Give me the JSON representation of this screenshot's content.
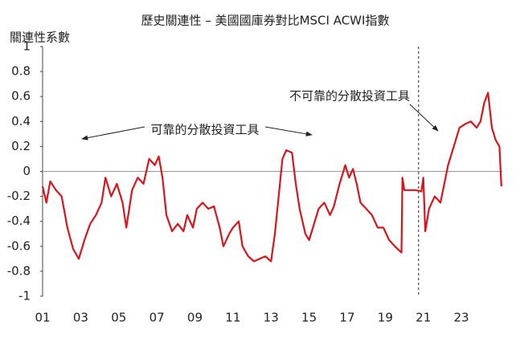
{
  "chart_data": {
    "type": "line",
    "title": "歷史關連性 – 美國國庫券對比MSCI ACWI指數",
    "y_label": "關連性系數",
    "annotations": [
      "可靠的分散投資工具",
      "不可靠的分散投資工具"
    ],
    "vline": 2020.75,
    "xlim": [
      2001,
      2025.15
    ],
    "xticks": [
      {
        "value": 2001,
        "label": "01"
      },
      {
        "value": 2003,
        "label": "03"
      },
      {
        "value": 2005,
        "label": "05"
      },
      {
        "value": 2007,
        "label": "07"
      },
      {
        "value": 2009,
        "label": "09"
      },
      {
        "value": 2011,
        "label": "11"
      },
      {
        "value": 2013,
        "label": "13"
      },
      {
        "value": 2015,
        "label": "15"
      },
      {
        "value": 2017,
        "label": "17"
      },
      {
        "value": 2019,
        "label": "19"
      },
      {
        "value": 2021,
        "label": "21"
      },
      {
        "value": 2023,
        "label": "23"
      }
    ],
    "ylim": [
      -1,
      1
    ],
    "yticks": [
      1,
      0.8,
      0.6,
      0.4,
      0.2,
      0,
      -0.2,
      -0.4,
      -0.6,
      -0.8,
      -1
    ],
    "x": [
      2001.0,
      2001.2,
      2001.4,
      2001.7,
      2002.0,
      2002.3,
      2002.6,
      2002.9,
      2003.2,
      2003.5,
      2003.8,
      2004.1,
      2004.3,
      2004.6,
      2004.9,
      2005.2,
      2005.4,
      2005.7,
      2006.0,
      2006.3,
      2006.6,
      2006.9,
      2007.1,
      2007.3,
      2007.5,
      2007.8,
      2008.1,
      2008.4,
      2008.6,
      2008.9,
      2009.1,
      2009.4,
      2009.7,
      2010.0,
      2010.3,
      2010.5,
      2010.8,
      2011.0,
      2011.3,
      2011.5,
      2011.8,
      2012.1,
      2012.4,
      2012.7,
      2013.0,
      2013.2,
      2013.4,
      2013.6,
      2013.8,
      2014.1,
      2014.3,
      2014.5,
      2014.8,
      2015.0,
      2015.3,
      2015.5,
      2015.8,
      2016.1,
      2016.3,
      2016.6,
      2016.9,
      2017.1,
      2017.3,
      2017.5,
      2017.7,
      2018.0,
      2018.3,
      2018.6,
      2018.9,
      2019.2,
      2019.5,
      2019.85,
      2019.9,
      2020.0,
      2020.2,
      2020.6,
      2020.9,
      2021.0,
      2021.1,
      2021.3,
      2021.6,
      2021.9,
      2022.1,
      2022.3,
      2022.6,
      2022.9,
      2023.2,
      2023.5,
      2023.8,
      2024.0,
      2024.2,
      2024.4,
      2024.6,
      2024.8,
      2025.0,
      2025.1
    ],
    "series": [
      {
        "color": "#d7161e",
        "values": [
          -0.12,
          -0.25,
          -0.08,
          -0.15,
          -0.2,
          -0.45,
          -0.62,
          -0.7,
          -0.55,
          -0.42,
          -0.35,
          -0.25,
          -0.05,
          -0.2,
          -0.1,
          -0.25,
          -0.45,
          -0.15,
          -0.05,
          -0.1,
          0.1,
          0.05,
          0.12,
          -0.05,
          -0.35,
          -0.48,
          -0.42,
          -0.48,
          -0.35,
          -0.45,
          -0.3,
          -0.25,
          -0.3,
          -0.28,
          -0.45,
          -0.6,
          -0.5,
          -0.45,
          -0.4,
          -0.6,
          -0.68,
          -0.72,
          -0.7,
          -0.68,
          -0.72,
          -0.5,
          -0.2,
          0.1,
          0.17,
          0.15,
          -0.1,
          -0.3,
          -0.5,
          -0.55,
          -0.4,
          -0.3,
          -0.25,
          -0.35,
          -0.28,
          -0.1,
          0.05,
          -0.05,
          0.02,
          -0.1,
          -0.25,
          -0.3,
          -0.35,
          -0.45,
          -0.45,
          -0.55,
          -0.6,
          -0.65,
          -0.05,
          -0.15,
          -0.15,
          -0.15,
          -0.16,
          -0.05,
          -0.48,
          -0.3,
          -0.2,
          -0.25,
          -0.1,
          0.05,
          0.2,
          0.35,
          0.38,
          0.4,
          0.35,
          0.4,
          0.55,
          0.63,
          0.35,
          0.25,
          0.2,
          -0.12
        ]
      }
    ]
  }
}
